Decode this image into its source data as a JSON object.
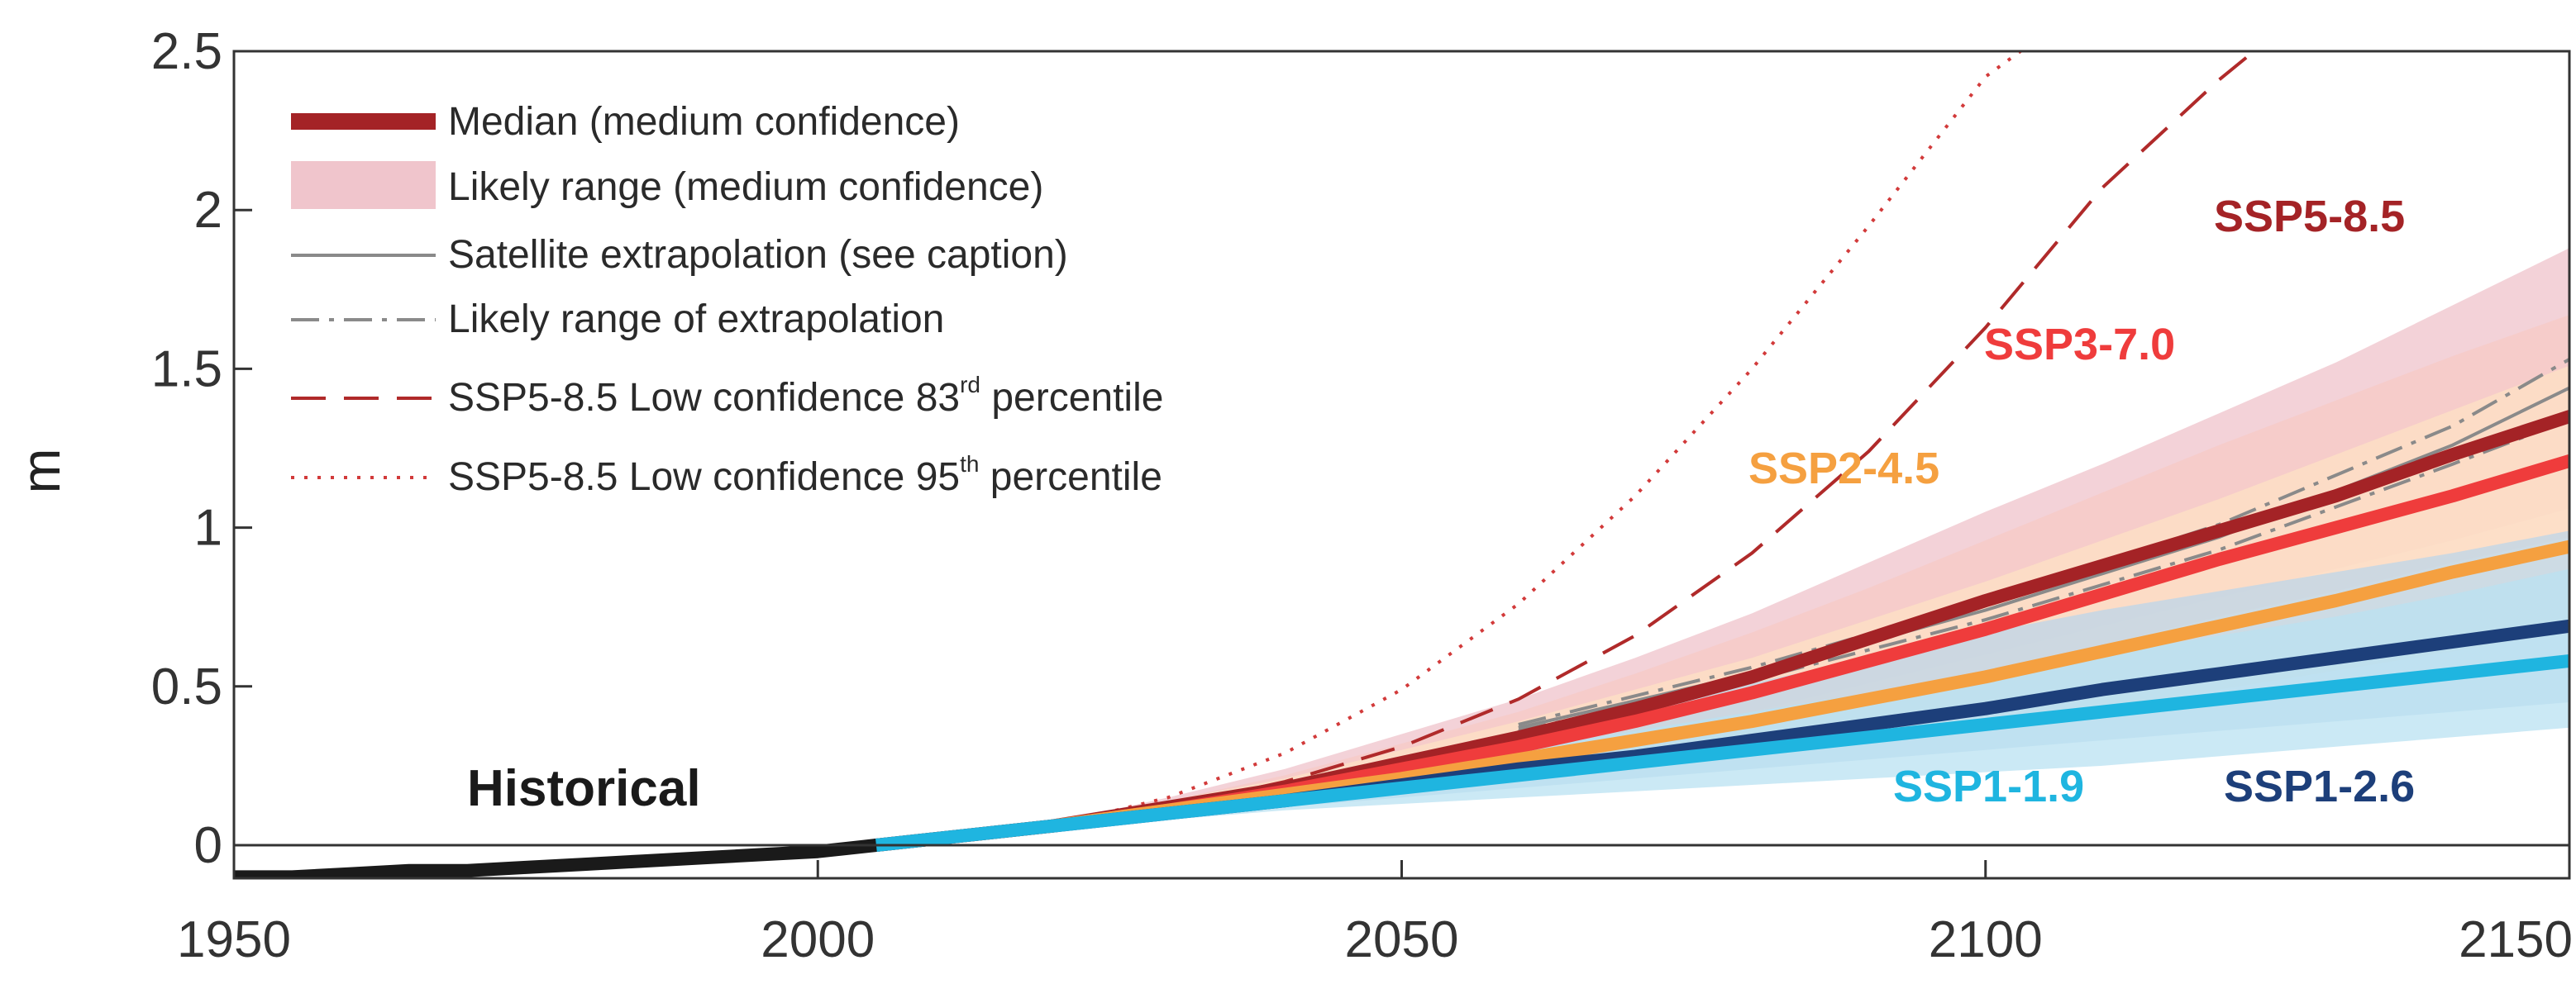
{
  "chart_data": {
    "type": "line",
    "title": "",
    "xlabel": "",
    "ylabel": "m",
    "xlim": [
      1950,
      2150
    ],
    "ylim": [
      0,
      2.5
    ],
    "xticks": [
      "1950",
      "2000",
      "2050",
      "2100",
      "2150"
    ],
    "yticks": [
      "0",
      "0.5",
      "1",
      "1.5",
      "2",
      "2.5"
    ],
    "x": [
      2005,
      2020,
      2030,
      2040,
      2050,
      2060,
      2070,
      2080,
      2090,
      2100,
      2110,
      2120,
      2130,
      2140,
      2150
    ],
    "historical": {
      "name": "Historical",
      "x": [
        1950,
        1955,
        1960,
        1965,
        1970,
        1975,
        1980,
        1985,
        1990,
        1995,
        2000,
        2005
      ],
      "values": [
        -0.1,
        -0.1,
        -0.09,
        -0.08,
        -0.08,
        -0.07,
        -0.06,
        -0.05,
        -0.04,
        -0.03,
        -0.02,
        0.0
      ]
    },
    "series": [
      {
        "name": "SSP1-1.9",
        "color": "#1fb5e0",
        "values": [
          0.0,
          0.06,
          0.1,
          0.14,
          0.18,
          0.22,
          0.26,
          0.3,
          0.34,
          0.38,
          0.42,
          0.46,
          0.5,
          0.54,
          0.58
        ],
        "range_low": [
          0.0,
          0.05,
          0.08,
          0.11,
          0.13,
          0.15,
          0.17,
          0.19,
          0.21,
          0.23,
          0.25,
          0.28,
          0.31,
          0.34,
          0.37
        ],
        "range_high": [
          0.0,
          0.07,
          0.12,
          0.18,
          0.24,
          0.3,
          0.36,
          0.42,
          0.48,
          0.54,
          0.6,
          0.66,
          0.72,
          0.79,
          0.87
        ]
      },
      {
        "name": "SSP1-2.6",
        "color": "#1d3f7a",
        "values": [
          0.0,
          0.06,
          0.1,
          0.14,
          0.19,
          0.24,
          0.28,
          0.33,
          0.38,
          0.43,
          0.49,
          0.54,
          0.59,
          0.64,
          0.69
        ],
        "range_low": [
          0.0,
          0.05,
          0.08,
          0.12,
          0.15,
          0.18,
          0.21,
          0.24,
          0.27,
          0.3,
          0.33,
          0.36,
          0.39,
          0.42,
          0.45
        ],
        "range_high": [
          0.0,
          0.07,
          0.13,
          0.2,
          0.27,
          0.35,
          0.43,
          0.51,
          0.59,
          0.67,
          0.74,
          0.8,
          0.86,
          0.92,
          0.99
        ]
      },
      {
        "name": "SSP2-4.5",
        "color": "#f5a040",
        "values": [
          0.0,
          0.06,
          0.11,
          0.16,
          0.21,
          0.27,
          0.33,
          0.39,
          0.46,
          0.53,
          0.61,
          0.69,
          0.77,
          0.86,
          0.94
        ],
        "range_low": [
          0.0,
          0.05,
          0.09,
          0.13,
          0.16,
          0.2,
          0.24,
          0.28,
          0.33,
          0.38,
          0.43,
          0.49,
          0.55,
          0.61,
          0.67
        ],
        "range_high": [
          0.0,
          0.07,
          0.14,
          0.21,
          0.3,
          0.39,
          0.49,
          0.59,
          0.71,
          0.83,
          0.96,
          1.09,
          1.23,
          1.37,
          1.51
        ]
      },
      {
        "name": "SSP3-7.0",
        "color": "#ef3c3c",
        "values": [
          0.0,
          0.06,
          0.11,
          0.17,
          0.24,
          0.31,
          0.39,
          0.48,
          0.58,
          0.68,
          0.79,
          0.9,
          1.0,
          1.1,
          1.21
        ],
        "range_low": [
          0.0,
          0.05,
          0.09,
          0.14,
          0.19,
          0.25,
          0.31,
          0.38,
          0.46,
          0.54,
          0.63,
          0.72,
          0.8,
          0.89,
          0.97
        ],
        "range_high": [
          0.0,
          0.07,
          0.14,
          0.22,
          0.32,
          0.42,
          0.54,
          0.67,
          0.81,
          0.96,
          1.11,
          1.26,
          1.4,
          1.54,
          1.67
        ]
      },
      {
        "name": "SSP5-8.5",
        "color": "#a42326",
        "values": [
          0.0,
          0.06,
          0.12,
          0.18,
          0.26,
          0.34,
          0.43,
          0.53,
          0.65,
          0.77,
          0.88,
          0.99,
          1.1,
          1.23,
          1.35
        ],
        "range_low": [
          0.0,
          0.05,
          0.09,
          0.14,
          0.2,
          0.27,
          0.34,
          0.42,
          0.51,
          0.6,
          0.69,
          0.78,
          0.87,
          0.96,
          1.06
        ],
        "range_high": [
          0.0,
          0.07,
          0.15,
          0.24,
          0.35,
          0.46,
          0.59,
          0.73,
          0.89,
          1.05,
          1.2,
          1.36,
          1.52,
          1.7,
          1.88
        ]
      }
    ],
    "satellite_extrapolation": {
      "x": [
        2060,
        2080,
        2100,
        2120,
        2140,
        2150
      ],
      "values": [
        0.37,
        0.54,
        0.74,
        0.97,
        1.26,
        1.44
      ],
      "range_low": [
        0.36,
        0.52,
        0.71,
        0.93,
        1.2,
        1.34
      ],
      "range_high": [
        0.38,
        0.56,
        0.77,
        1.01,
        1.32,
        1.53
      ]
    },
    "ssp585_p83": {
      "x": [
        2020,
        2030,
        2040,
        2050,
        2060,
        2070,
        2080,
        2090,
        2100,
        2110,
        2120,
        2123
      ],
      "values": [
        0.06,
        0.12,
        0.2,
        0.31,
        0.46,
        0.66,
        0.92,
        1.24,
        1.63,
        2.07,
        2.41,
        2.5
      ]
    },
    "ssp585_p95": {
      "x": [
        2020,
        2030,
        2040,
        2050,
        2060,
        2070,
        2080,
        2090,
        2100,
        2103
      ],
      "values": [
        0.06,
        0.15,
        0.29,
        0.49,
        0.76,
        1.1,
        1.5,
        1.95,
        2.42,
        2.5
      ]
    },
    "legend": [
      {
        "label": "Median (medium confidence)"
      },
      {
        "label": "Likely range (medium confidence)"
      },
      {
        "label": "Satellite extrapolation (see caption)"
      },
      {
        "label": "Likely range of extrapolation"
      },
      {
        "label_prefix": "SSP5-8.5 Low confidence 83",
        "superscript": "rd",
        "label_suffix": " percentile"
      },
      {
        "label_prefix": "SSP5-8.5 Low confidence 95",
        "superscript": "th",
        "label_suffix": " percentile"
      }
    ],
    "annotations": {
      "historical": "Historical"
    },
    "colors": {
      "median": "#a42326",
      "likely_range": "#f0c5cc",
      "satellite": "#8a8a8a",
      "p83": "#b02a2a",
      "p95": "#d23a3a",
      "historical": "#1a1a1a"
    }
  }
}
